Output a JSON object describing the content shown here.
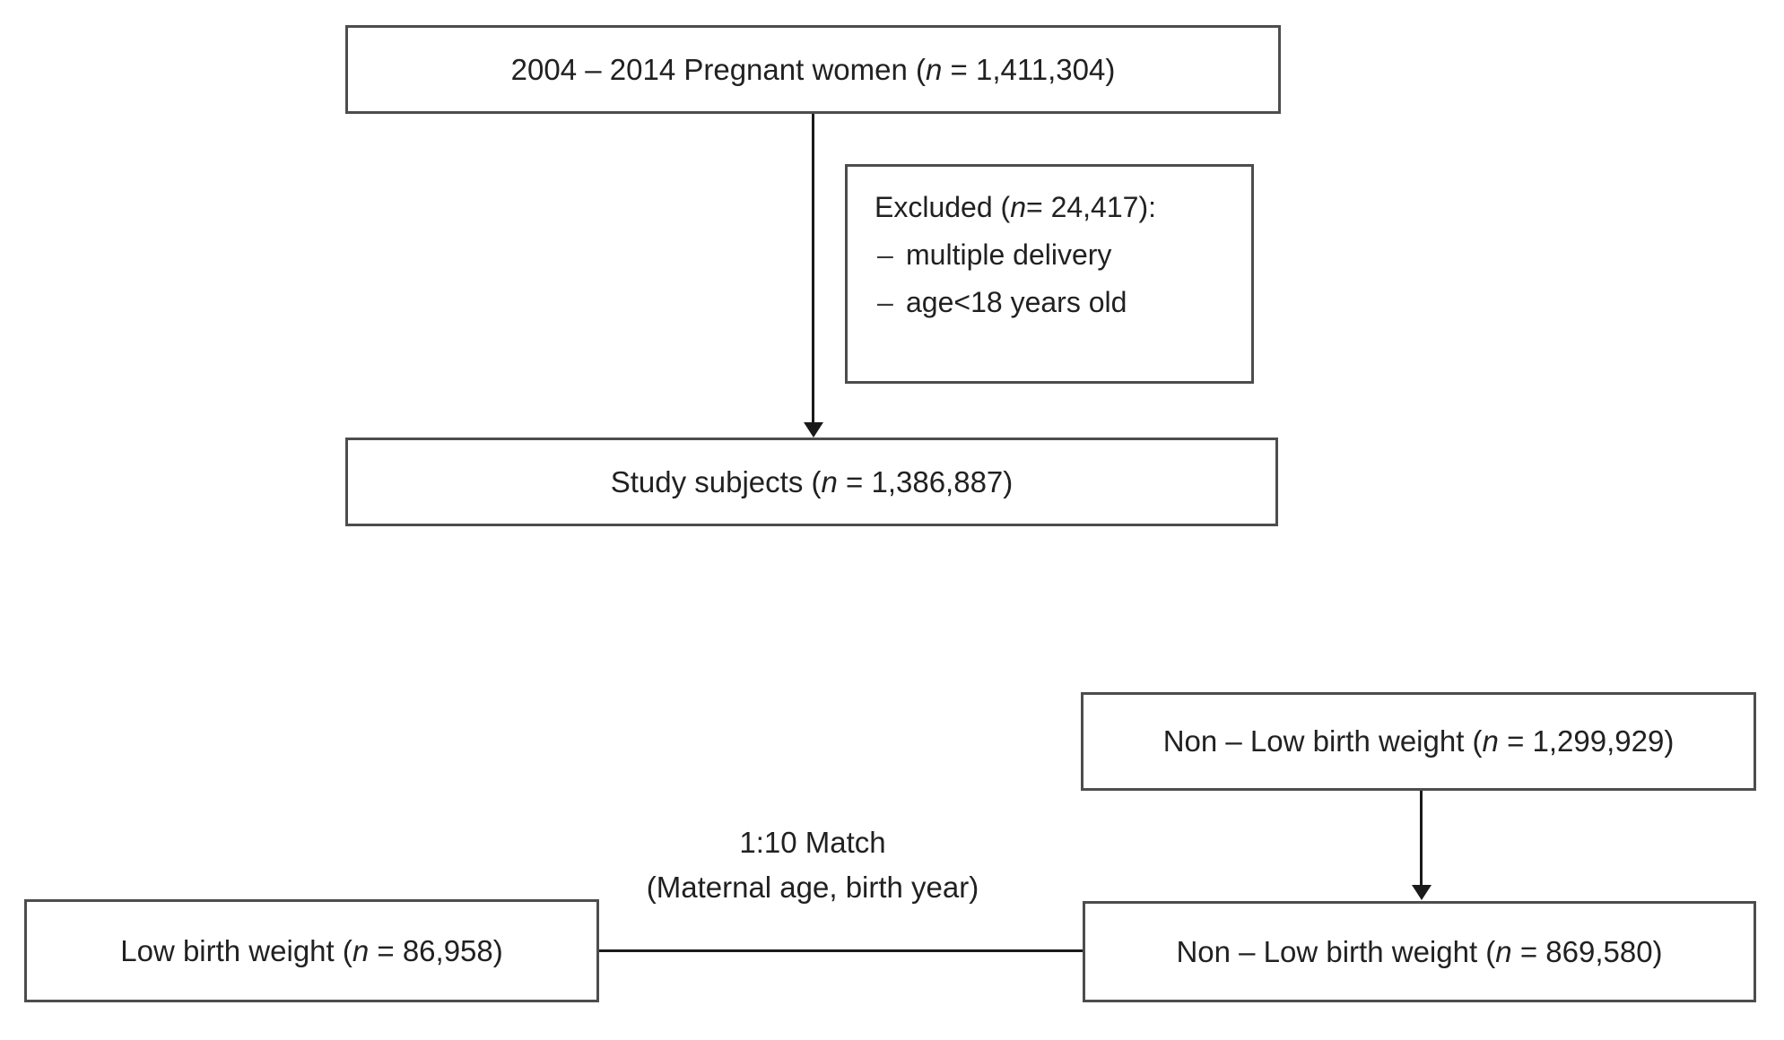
{
  "diagram": {
    "colors": {
      "border": "#4d4d4d",
      "line": "#1a1a1a",
      "text": "#212121",
      "background": "#ffffff"
    },
    "boxes": {
      "pregnant_women": {
        "label": "2004 – 2014 Pregnant women (n = 1,411,304)"
      },
      "excluded": {
        "title": "Excluded (n = 24,417):",
        "items": [
          {
            "bullet": "–",
            "text": "multiple delivery"
          },
          {
            "bullet": "–",
            "text": "age<18 years old"
          }
        ]
      },
      "study_subjects": {
        "label": "Study subjects (n = 1,386,887)"
      },
      "non_lbw_full": {
        "label": "Non – Low birth weight (n = 1,299,929)"
      },
      "lbw": {
        "label": "Low birth weight (n = 86,958)"
      },
      "non_lbw_matched": {
        "label": "Non – Low birth weight (n = 869,580)"
      }
    },
    "match_label": {
      "line1": "1:10 Match",
      "line2": "(Maternal age, birth year)"
    }
  }
}
